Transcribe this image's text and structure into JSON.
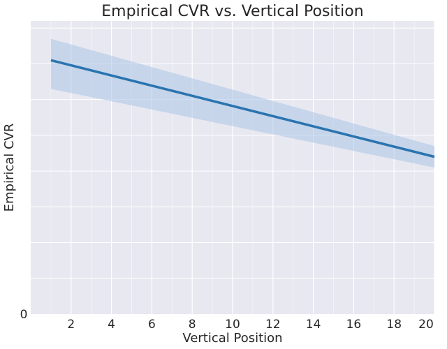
{
  "chart_data": {
    "type": "line",
    "title": "Empirical CVR vs. Vertical Position",
    "xlabel": "Vertical Position",
    "ylabel": "Empirical CVR",
    "xlim": [
      0,
      20
    ],
    "ylim": [
      0,
      0.82
    ],
    "x_ticks": [
      2,
      4,
      6,
      8,
      10,
      12,
      14,
      16,
      18,
      20
    ],
    "y_ticks": [
      0
    ],
    "y_tick_labels": [
      "0"
    ],
    "grid": true,
    "series": [
      {
        "x": [
          1,
          20
        ],
        "y": [
          0.71,
          0.44
        ],
        "ci_lower": [
          0.63,
          0.41
        ],
        "ci_upper": [
          0.77,
          0.47
        ]
      }
    ],
    "colors": {
      "line": "#2a74b0",
      "band": "#a9c5e3",
      "plot_background": "#e8e8f1",
      "grid": "#ffffff"
    }
  }
}
